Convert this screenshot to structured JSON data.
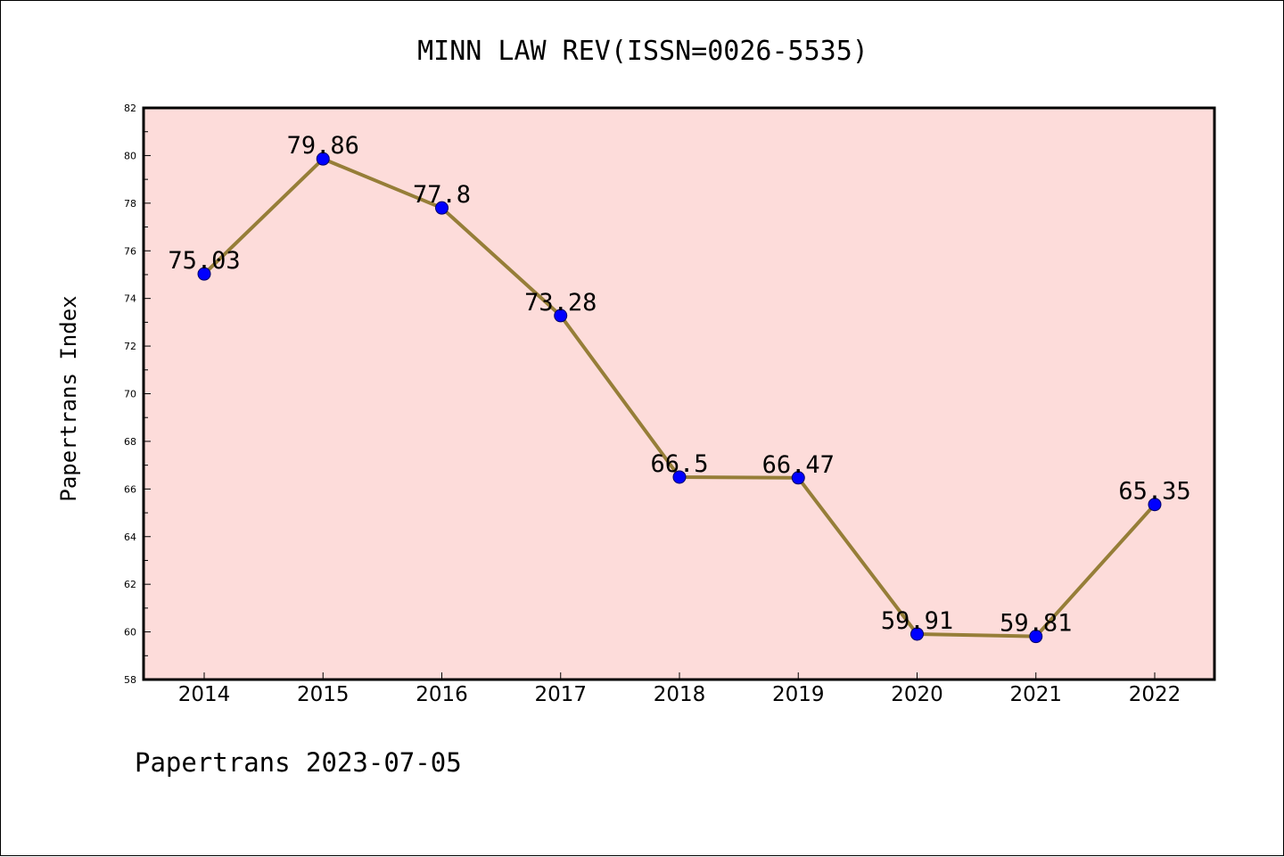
{
  "chart_data": {
    "type": "line",
    "title": "MINN LAW REV(ISSN=0026-5535)",
    "ylabel": "Papertrans Index",
    "xlabel": "",
    "footer": "Papertrans 2023-07-05",
    "x": [
      "2014",
      "2015",
      "2016",
      "2017",
      "2018",
      "2019",
      "2020",
      "2021",
      "2022"
    ],
    "series": [
      {
        "values": [
          75.03,
          79.86,
          77.8,
          73.28,
          66.5,
          66.47,
          59.91,
          59.81,
          65.35
        ],
        "labels": [
          "75.03",
          "79.86",
          "77.8",
          "73.28",
          "66.5",
          "66.47",
          "59.91",
          "59.81",
          "65.35"
        ]
      }
    ],
    "ylim": [
      58,
      82
    ],
    "yticks": [
      "58",
      "60",
      "62",
      "64",
      "66",
      "68",
      "70",
      "72",
      "74",
      "76",
      "78",
      "80",
      "82"
    ],
    "grid": false,
    "colors": {
      "plot_background": "#fddcda",
      "line": "#967e38",
      "marker": "#0000ff"
    }
  }
}
